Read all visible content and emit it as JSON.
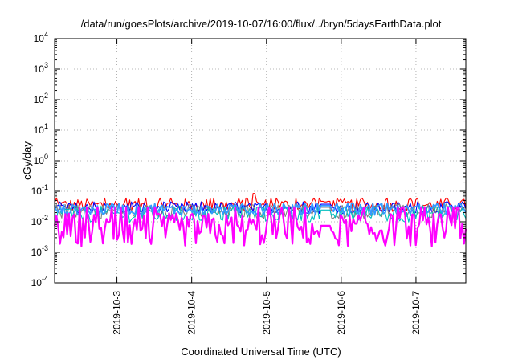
{
  "chart_data": {
    "type": "line",
    "title": "/data/run/goesPlots/archive/2019-10-07/16:00/flux/../bryn/5daysEarthData.plot",
    "xlabel": "Coordinated Universal Time (UTC)",
    "ylabel": "cGy/day",
    "y_scale": "log",
    "ylim": [
      0.0001,
      10000
    ],
    "xlim": [
      "2019-10-02T04:00",
      "2019-10-07T16:00"
    ],
    "x_ticks": [
      "2019-10-3",
      "2019-10-4",
      "2019-10-5",
      "2019-10-6",
      "2019-10-7"
    ],
    "y_ticks": [
      {
        "base": "10",
        "exp": "-4"
      },
      {
        "base": "10",
        "exp": "-3"
      },
      {
        "base": "10",
        "exp": "-2"
      },
      {
        "base": "10",
        "exp": "-1"
      },
      {
        "base": "10",
        "exp": "0"
      },
      {
        "base": "10",
        "exp": "1"
      },
      {
        "base": "10",
        "exp": "2"
      },
      {
        "base": "10",
        "exp": "3"
      },
      {
        "base": "10",
        "exp": "4"
      }
    ],
    "grid": true,
    "legend": "none",
    "series": [
      {
        "color": "#ff0000",
        "base": 0.035,
        "spread": 0.35,
        "spike": 0.06
      },
      {
        "color": "#0000ff",
        "base": 0.028,
        "spread": 0.3,
        "spike": 0.045
      },
      {
        "color": "#808080",
        "base": 0.022,
        "spread": 0.4,
        "spike": 0.035
      },
      {
        "color": "#00bfbf",
        "base": 0.018,
        "spread": 0.45,
        "spike": 0.03
      },
      {
        "color": "#3399ff",
        "base": 0.025,
        "spread": 0.3,
        "spike": 0.04
      },
      {
        "color": "#ff00ff",
        "base": 0.0055,
        "spread": 0.55,
        "spike": 0.03
      }
    ],
    "anomalies": [
      {
        "x": "2019-10-04T20:00",
        "y": 0.085
      },
      {
        "x": "2019-10-05T19:00",
        "y": 0.045
      }
    ]
  }
}
